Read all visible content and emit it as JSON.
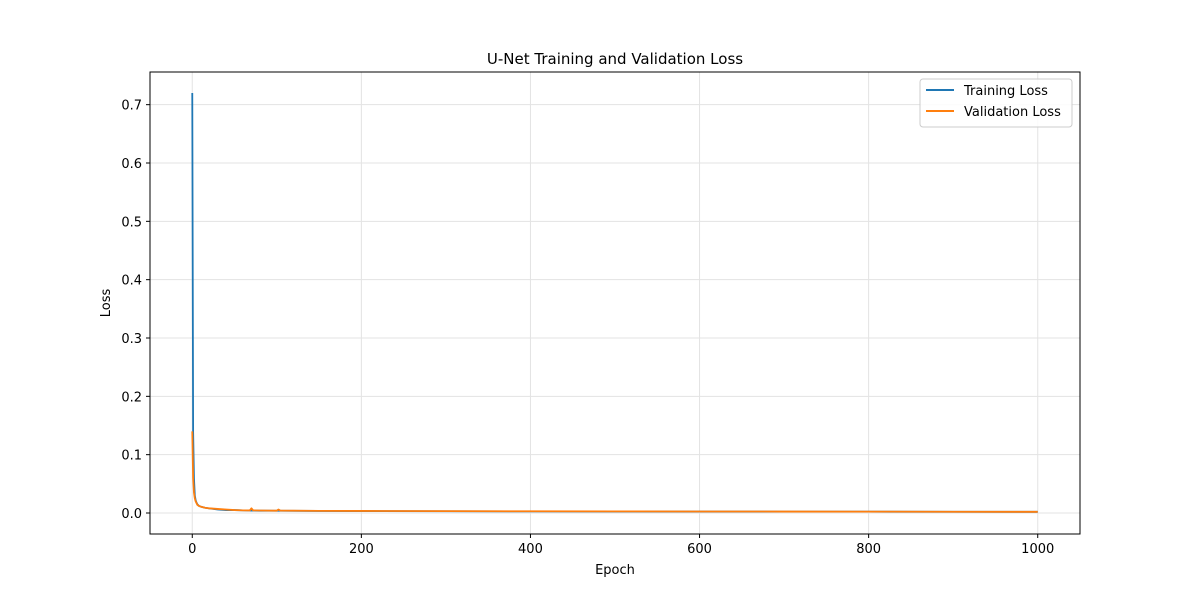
{
  "chart_data": {
    "type": "line",
    "title": "U-Net Training and Validation Loss",
    "xlabel": "Epoch",
    "ylabel": "Loss",
    "xlim": [
      -50,
      1050
    ],
    "ylim": [
      -0.036,
      0.756
    ],
    "xticks": [
      0,
      200,
      400,
      600,
      800,
      1000
    ],
    "xtick_labels": [
      "0",
      "200",
      "400",
      "600",
      "800",
      "1000"
    ],
    "yticks": [
      0.0,
      0.1,
      0.2,
      0.3,
      0.4,
      0.5,
      0.6,
      0.7
    ],
    "ytick_labels": [
      "0.0",
      "0.1",
      "0.2",
      "0.3",
      "0.4",
      "0.5",
      "0.6",
      "0.7"
    ],
    "grid": true,
    "legend_position": "top-right",
    "series": [
      {
        "name": "Training Loss",
        "color": "#1f77b4",
        "x": [
          0,
          1,
          2,
          3,
          4,
          5,
          6,
          8,
          10,
          15,
          20,
          30,
          40,
          50,
          60,
          70,
          80,
          100,
          150,
          200,
          300,
          400,
          500,
          600,
          700,
          800,
          900,
          1000
        ],
        "y": [
          0.72,
          0.14,
          0.06,
          0.03,
          0.022,
          0.018,
          0.015,
          0.012,
          0.011,
          0.009,
          0.008,
          0.006,
          0.005,
          0.005,
          0.0045,
          0.0042,
          0.004,
          0.0038,
          0.0035,
          0.0033,
          0.003,
          0.0028,
          0.0027,
          0.0025,
          0.0024,
          0.0023,
          0.0022,
          0.002
        ]
      },
      {
        "name": "Validation Loss",
        "color": "#ff7f0e",
        "x": [
          0,
          1,
          2,
          3,
          4,
          5,
          6,
          8,
          10,
          15,
          20,
          30,
          40,
          50,
          60,
          68,
          70,
          72,
          80,
          100,
          102,
          104,
          150,
          200,
          300,
          400,
          500,
          600,
          700,
          800,
          900,
          1000
        ],
        "y": [
          0.14,
          0.06,
          0.035,
          0.025,
          0.02,
          0.017,
          0.014,
          0.012,
          0.011,
          0.009,
          0.008,
          0.007,
          0.006,
          0.005,
          0.0045,
          0.0044,
          0.008,
          0.0045,
          0.0043,
          0.004,
          0.006,
          0.0042,
          0.0037,
          0.0035,
          0.0032,
          0.003,
          0.0028,
          0.0026,
          0.0025,
          0.0024,
          0.0022,
          0.002
        ]
      }
    ]
  }
}
